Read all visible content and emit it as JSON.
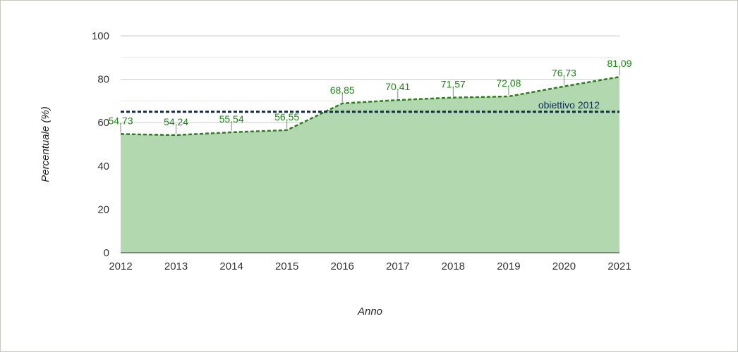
{
  "chart_data": {
    "type": "area",
    "title": "",
    "xlabel": "Anno",
    "ylabel": "Percentuale (%)",
    "categories": [
      "2012",
      "2013",
      "2014",
      "2015",
      "2016",
      "2017",
      "2018",
      "2019",
      "2020",
      "2021"
    ],
    "series": [
      {
        "values": [
          54.73,
          54.24,
          55.54,
          56.55,
          68.85,
          70.41,
          71.57,
          72.08,
          76.73,
          81.09
        ],
        "labels": [
          "54,73",
          "54,24",
          "55,54",
          "56,55",
          "68,85",
          "70,41",
          "71,57",
          "72,08",
          "76,73",
          "81,09"
        ],
        "color": "#2e7d1e",
        "fill": "#b2d8b0"
      }
    ],
    "target": {
      "label": "obiettivo 2012",
      "value": 65,
      "color": "#0d2a5e"
    },
    "ylim": [
      0,
      100
    ],
    "yticks": [
      "0",
      "20",
      "40",
      "60",
      "80",
      "100"
    ],
    "grid": true,
    "legend": "none"
  }
}
